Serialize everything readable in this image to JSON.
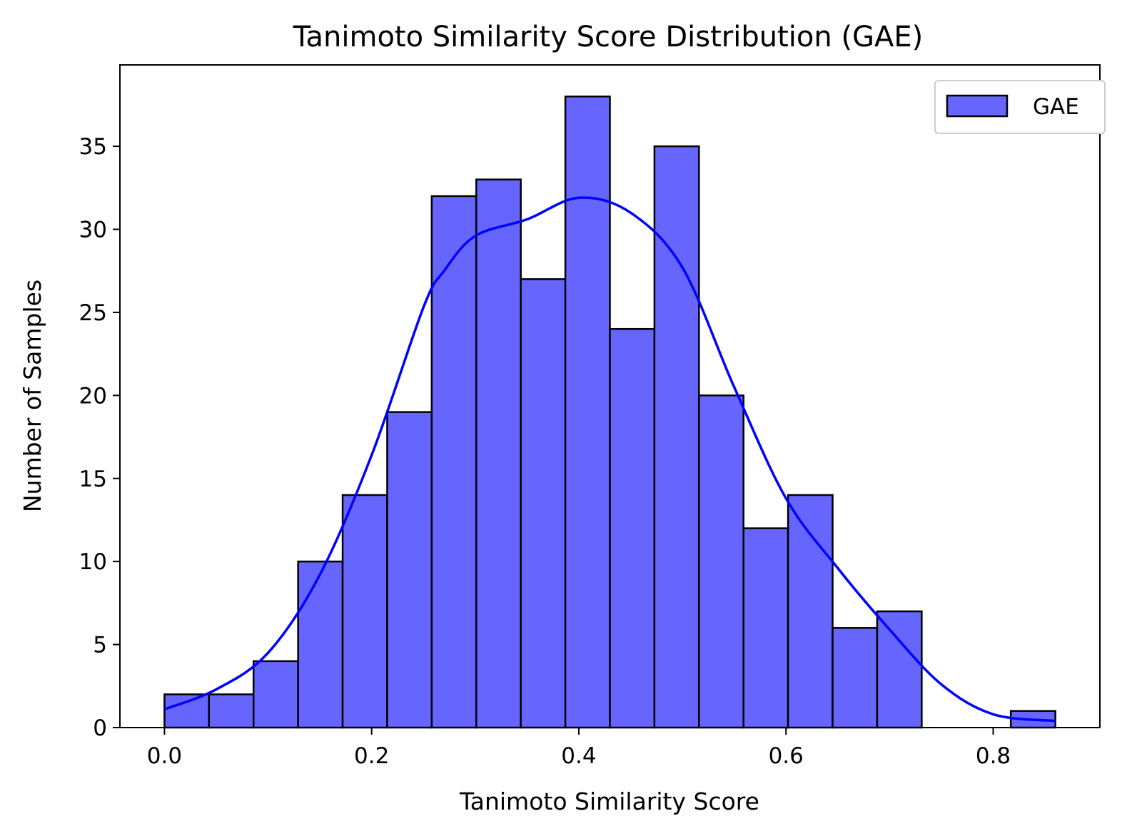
{
  "chart_data": {
    "type": "bar",
    "subtype": "histogram_with_kde",
    "title": "Tanimoto Similarity Score Distribution (GAE)",
    "xlabel": "Tanimoto Similarity Score",
    "ylabel": "Number of Samples",
    "xlim": [
      -0.043,
      0.903
    ],
    "ylim": [
      0,
      39.9
    ],
    "xticks": [
      0.0,
      0.2,
      0.4,
      0.6,
      0.8
    ],
    "xtick_labels": [
      "0.0",
      "0.2",
      "0.4",
      "0.6",
      "0.8"
    ],
    "yticks": [
      0,
      5,
      10,
      15,
      20,
      25,
      30,
      35
    ],
    "ytick_labels": [
      "0",
      "5",
      "10",
      "15",
      "20",
      "25",
      "30",
      "35"
    ],
    "bin_edges": [
      0.0,
      0.043,
      0.086,
      0.129,
      0.172,
      0.215,
      0.258,
      0.301,
      0.344,
      0.387,
      0.43,
      0.473,
      0.516,
      0.559,
      0.602,
      0.645,
      0.688,
      0.731,
      0.774,
      0.817,
      0.86
    ],
    "series": [
      {
        "name": "GAE",
        "type": "histogram",
        "values": [
          2,
          2,
          4,
          10,
          14,
          19,
          32,
          33,
          27,
          38,
          24,
          35,
          20,
          12,
          14,
          6,
          7,
          0,
          0,
          1
        ]
      },
      {
        "type": "kde_line",
        "x": [
          0.0,
          0.05,
          0.1,
          0.15,
          0.2,
          0.25,
          0.27,
          0.3,
          0.35,
          0.4,
          0.45,
          0.5,
          0.55,
          0.6,
          0.65,
          0.7,
          0.75,
          0.8,
          0.86
        ],
        "y": [
          1.1,
          2.3,
          4.5,
          9.2,
          16.4,
          25.3,
          27.5,
          29.6,
          30.6,
          31.9,
          31.0,
          27.7,
          20.5,
          13.8,
          9.6,
          5.9,
          2.6,
          0.8,
          0.4
        ]
      }
    ],
    "legend": {
      "position": "top-right",
      "entries": [
        "GAE"
      ]
    },
    "grid": false,
    "colors": {
      "bar_fill": "#6666ff",
      "bar_edge": "#000000",
      "kde_line": "#0000ff",
      "axes": "#000000"
    }
  }
}
